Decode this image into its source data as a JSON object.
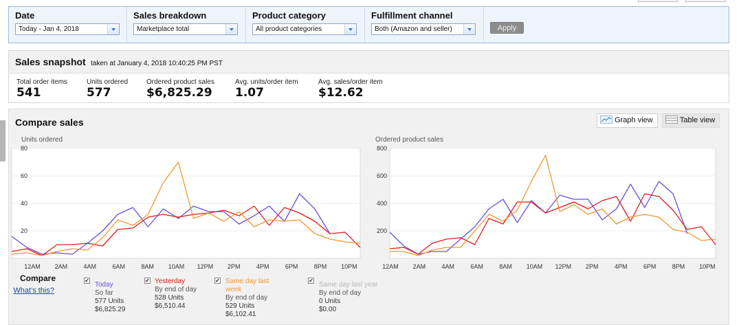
{
  "filters": {
    "date": {
      "label": "Date",
      "value": "Today - Jan 4, 2018"
    },
    "breakdown": {
      "label": "Sales breakdown",
      "value": "Marketplace total"
    },
    "category": {
      "label": "Product category",
      "value": "All product categories"
    },
    "channel": {
      "label": "Fulfillment channel",
      "value": "Both (Amazon and seller)"
    },
    "apply_label": "Apply"
  },
  "snapshot": {
    "title": "Sales snapshot",
    "subtitle": "taken at January 4, 2018 10:40:25 PM PST",
    "metrics": [
      {
        "label": "Total order items",
        "value": "541"
      },
      {
        "label": "Units ordered",
        "value": "577"
      },
      {
        "label": "Ordered product sales",
        "value": "$6,825.29"
      },
      {
        "label": "Avg. units/order item",
        "value": "1.07"
      },
      {
        "label": "Avg. sales/order item",
        "value": "$12.62"
      }
    ]
  },
  "compare": {
    "title": "Compare sales",
    "graph_view_label": "Graph view",
    "table_view_label": "Table view",
    "compare_label": "Compare",
    "whats_this": "What's this?",
    "legend": [
      {
        "name": "Today",
        "color": "#6b4de0",
        "checked": true,
        "line1": "So far",
        "line2": "577 Units",
        "line3": "$6,825.29"
      },
      {
        "name": "Yesterday",
        "color": "#e01b1b",
        "checked": true,
        "line1": "By end of day",
        "line2": "528 Units",
        "line3": "$6,510.44"
      },
      {
        "name": "Same day last week",
        "color": "#f2962c",
        "checked": true,
        "line1": "By end of day",
        "line2": "529 Units",
        "line3": "$6,102.41"
      },
      {
        "name": "Same day last year",
        "color": "#b9b9b9",
        "checked": true,
        "line1": "By end of day",
        "line2": "0 Units",
        "line3": "$0.00"
      }
    ]
  },
  "chart_data": [
    {
      "type": "line",
      "title": "Units ordered",
      "ylim": [
        0,
        80
      ],
      "yticks": [
        20,
        40,
        60,
        80
      ],
      "xticks": [
        "12AM",
        "2AM",
        "4AM",
        "6AM",
        "8AM",
        "10AM",
        "12PM",
        "2PM",
        "4PM",
        "6PM",
        "8PM",
        "10PM"
      ],
      "x": [
        0,
        1,
        2,
        3,
        4,
        5,
        6,
        7,
        8,
        9,
        10,
        11,
        12,
        13,
        14,
        15,
        16,
        17,
        18,
        19,
        20,
        21,
        22,
        23
      ],
      "series": [
        {
          "name": "Today",
          "color": "#6b4de0",
          "values": [
            16,
            8,
            3,
            4,
            3,
            11,
            20,
            32,
            37,
            23,
            36,
            29,
            38,
            34,
            34,
            25,
            31,
            38,
            27,
            47,
            36,
            18,
            null,
            null
          ]
        },
        {
          "name": "Yesterday",
          "color": "#e01b1b",
          "values": [
            5,
            7,
            2,
            10,
            10,
            11,
            9,
            21,
            22,
            30,
            32,
            30,
            32,
            33,
            35,
            31,
            38,
            24,
            37,
            33,
            27,
            18,
            19,
            8
          ]
        },
        {
          "name": "Same day last week",
          "color": "#f2962c",
          "values": [
            3,
            4,
            2,
            5,
            7,
            6,
            15,
            28,
            24,
            32,
            55,
            70,
            29,
            33,
            27,
            34,
            23,
            28,
            27,
            28,
            18,
            14,
            12,
            11
          ]
        }
      ]
    },
    {
      "type": "line",
      "title": "Ordered product sales",
      "ylim": [
        0,
        800
      ],
      "yticks": [
        200,
        400,
        600,
        800
      ],
      "xticks": [
        "12AM",
        "2AM",
        "4AM",
        "6AM",
        "8AM",
        "10AM",
        "12PM",
        "2PM",
        "4PM",
        "6PM",
        "8PM",
        "10PM"
      ],
      "x": [
        0,
        1,
        2,
        3,
        4,
        5,
        6,
        7,
        8,
        9,
        10,
        11,
        12,
        13,
        14,
        15,
        16,
        17,
        18,
        19,
        20,
        21,
        22,
        23
      ],
      "series": [
        {
          "name": "Today",
          "color": "#6b4de0",
          "values": [
            190,
            90,
            30,
            50,
            50,
            140,
            230,
            360,
            430,
            260,
            420,
            330,
            460,
            430,
            430,
            280,
            360,
            540,
            370,
            560,
            470,
            180,
            null,
            null
          ]
        },
        {
          "name": "Yesterday",
          "color": "#e01b1b",
          "values": [
            70,
            80,
            30,
            110,
            140,
            150,
            100,
            290,
            250,
            410,
            410,
            330,
            370,
            410,
            360,
            420,
            450,
            270,
            470,
            450,
            350,
            210,
            230,
            100
          ]
        },
        {
          "name": "Same day last week",
          "color": "#f2962c",
          "values": [
            50,
            50,
            20,
            60,
            80,
            80,
            200,
            320,
            270,
            350,
            560,
            750,
            340,
            390,
            320,
            360,
            250,
            300,
            320,
            300,
            210,
            190,
            130,
            140
          ]
        }
      ]
    }
  ]
}
